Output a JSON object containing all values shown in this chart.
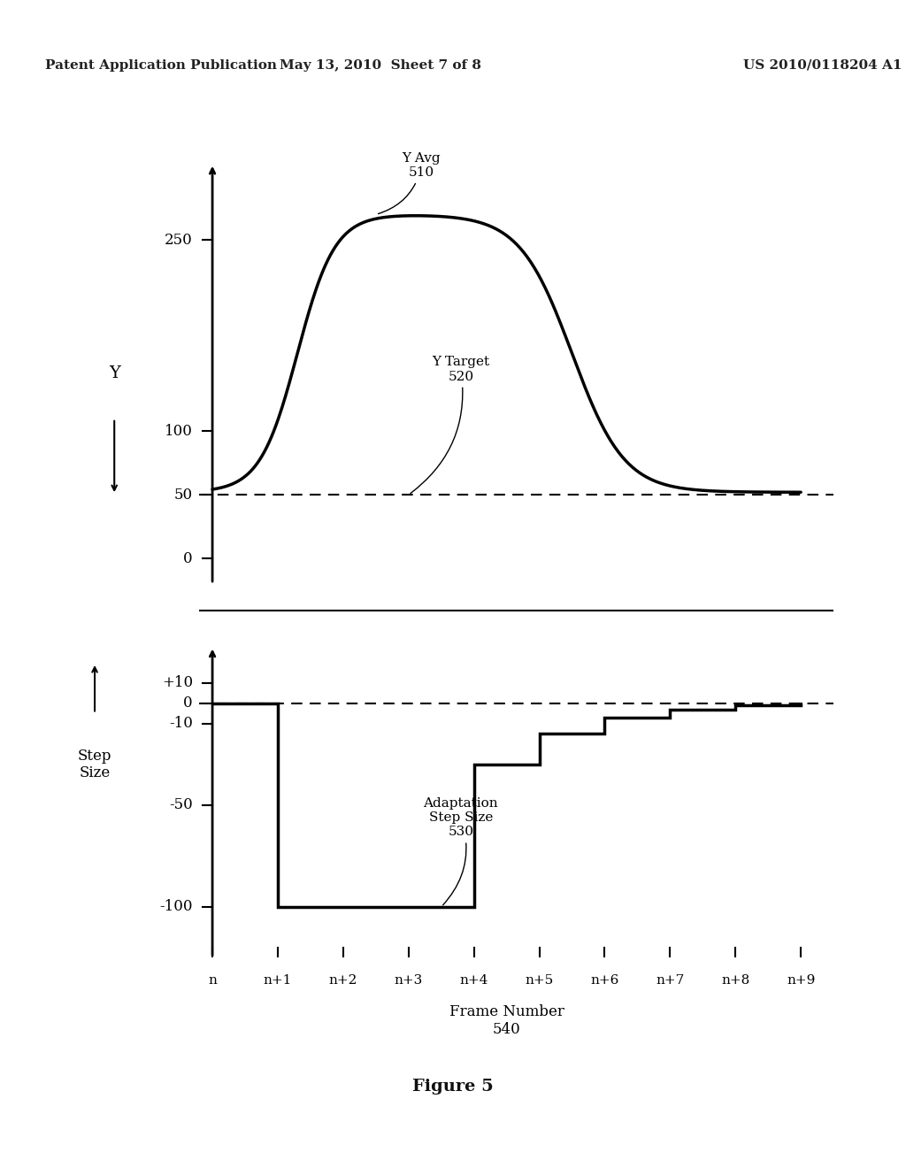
{
  "header_left": "Patent Application Publication",
  "header_mid": "May 13, 2010  Sheet 7 of 8",
  "header_right": "US 2010/0118204 A1",
  "figure_label": "Figure 5",
  "background_color": "#ffffff",
  "top_plot": {
    "yticks": [
      0,
      50,
      100,
      250
    ],
    "ylabel": "Y",
    "ytarget": 50,
    "yavg_label": "Y Avg\n510",
    "ytarget_label": "Y Target\n520"
  },
  "bottom_plot": {
    "yticks": [
      -100,
      -50,
      -10,
      0,
      10
    ],
    "ylabel": "Step\nSize",
    "yzero": 0,
    "adaptation_label": "Adaptation\nStep Size\n530"
  },
  "xtick_labels": [
    "n",
    "n+1",
    "n+2",
    "n+3",
    "n+4",
    "n+5",
    "n+6",
    "n+7",
    "n+8",
    "n+9"
  ],
  "xlabel": "Frame Number\n540"
}
